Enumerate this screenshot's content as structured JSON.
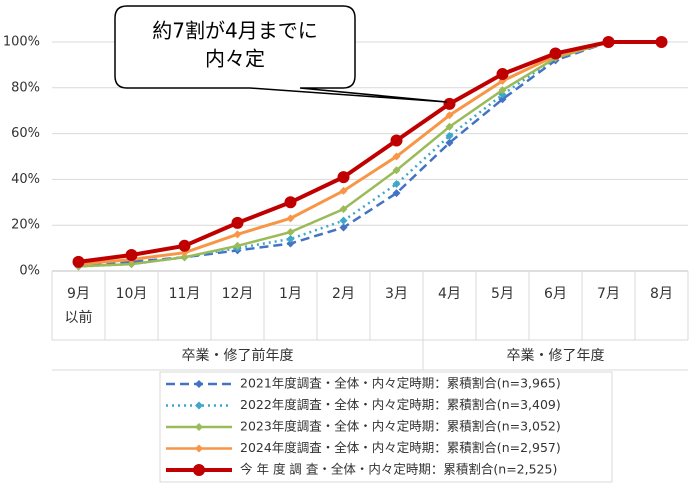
{
  "chart_data": {
    "type": "line",
    "annotation": [
      "約7割が4月までに",
      "内々定"
    ],
    "categories": [
      "9月以前",
      "10月",
      "11月",
      "12月",
      "1月",
      "2月",
      "3月",
      "4月",
      "5月",
      "6月",
      "7月",
      "8月"
    ],
    "groups": [
      {
        "label": "卒業・修了前年度",
        "span": 7
      },
      {
        "label": "卒業・修了年度",
        "span": 5
      }
    ],
    "ylim": [
      0,
      100
    ],
    "yticks": [
      {
        "value": 0,
        "label": "0%"
      },
      {
        "value": 20,
        "label": "20%"
      },
      {
        "value": 40,
        "label": "40%"
      },
      {
        "value": 60,
        "label": "60%"
      },
      {
        "value": 80,
        "label": "80%"
      },
      {
        "value": 100,
        "label": "100%"
      }
    ],
    "grid": true,
    "series": [
      {
        "name": "2021年度調査・全体・内々定時期：累積割合(n=3,965)",
        "color": "#4472c4",
        "dash": "dashed",
        "marker": "diamond",
        "values": [
          2,
          4,
          6,
          9,
          12,
          19,
          34,
          56,
          75,
          92,
          100,
          100
        ]
      },
      {
        "name": "2022年度調査・全体・内々定時期：累積割合(n=3,409)",
        "color": "#3fa7c9",
        "dash": "dotted",
        "marker": "diamond",
        "values": [
          2,
          3,
          6,
          10,
          14,
          22,
          38,
          59,
          77,
          93,
          100,
          100
        ]
      },
      {
        "name": "2023年度調査・全体・内々定時期：累積割合(n=3,052)",
        "color": "#9bbb59",
        "dash": "solid",
        "marker": "diamond",
        "values": [
          2,
          3,
          6,
          11,
          17,
          27,
          44,
          63,
          79,
          93,
          100,
          100
        ]
      },
      {
        "name": "2024年度調査・全体・内々定時期：累積割合(n=2,957)",
        "color": "#f79646",
        "dash": "solid",
        "marker": "diamond",
        "values": [
          3,
          5,
          8,
          16,
          23,
          35,
          50,
          68,
          83,
          94,
          100,
          100
        ]
      },
      {
        "name": "今 年 度 調 査・全体・内々定時期：累積割合(n=2,525)",
        "color": "#c00000",
        "dash": "solid",
        "marker": "circle",
        "values": [
          4,
          7,
          11,
          21,
          30,
          41,
          57,
          73,
          86,
          95,
          100,
          100
        ]
      }
    ]
  }
}
